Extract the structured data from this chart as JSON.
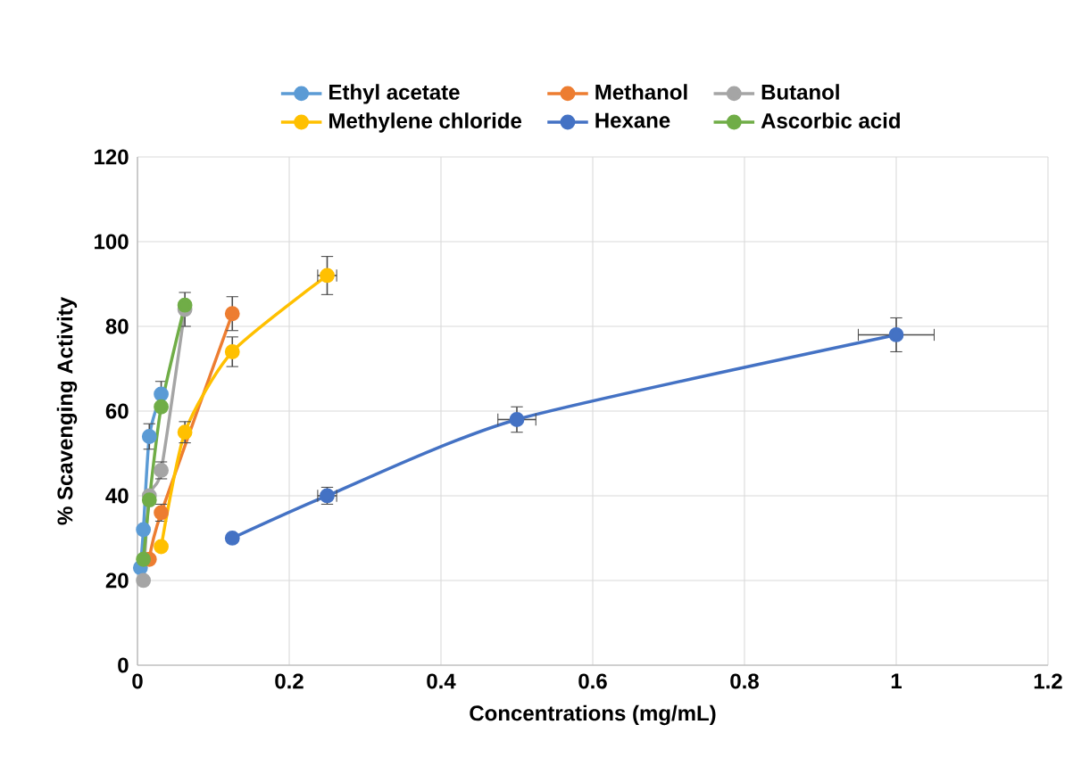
{
  "chart_data": {
    "type": "line",
    "xlabel": "Concentrations (mg/mL)",
    "ylabel": "% Scavenging Activity",
    "xlim": [
      0,
      1.2
    ],
    "xticks": [
      0,
      0.2,
      0.4,
      0.6,
      0.8,
      1,
      1.2
    ],
    "ylim": [
      0,
      120
    ],
    "yticks": [
      0,
      20,
      40,
      60,
      80,
      100,
      120
    ],
    "grid": true,
    "legend": "top",
    "marker": "circle",
    "series": [
      {
        "name": "Ethyl acetate",
        "color": "#5b9bd5",
        "x": [
          0.0039,
          0.0078,
          0.015625,
          0.03125
        ],
        "values": [
          23,
          32,
          54,
          64
        ],
        "errors": [
          null,
          null,
          3,
          3
        ]
      },
      {
        "name": "Methanol",
        "color": "#ed7d31",
        "x": [
          0.015625,
          0.03125,
          0.125
        ],
        "values": [
          25,
          36,
          83
        ],
        "errors": [
          null,
          2,
          4
        ]
      },
      {
        "name": "Butanol",
        "color": "#a5a5a5",
        "x": [
          0.0078,
          0.015625,
          0.03125,
          0.0625
        ],
        "values": [
          20,
          40,
          46,
          84
        ],
        "errors": [
          null,
          null,
          2,
          4
        ]
      },
      {
        "name": "Methylene chloride",
        "color": "#ffc000",
        "x": [
          0.03125,
          0.0625,
          0.125,
          0.25
        ],
        "values": [
          28,
          55,
          74,
          92
        ],
        "errors": [
          null,
          2.5,
          3.5,
          4.5
        ],
        "xerrors": [
          null,
          null,
          null,
          0.0125
        ]
      },
      {
        "name": "Hexane",
        "color": "#4472c4",
        "x": [
          0.125,
          0.25,
          0.5,
          1
        ],
        "values": [
          30,
          40,
          58,
          78
        ],
        "errors": [
          null,
          2,
          3,
          4
        ],
        "xerrors": [
          null,
          0.0125,
          0.025,
          0.05
        ]
      },
      {
        "name": "Ascorbic acid",
        "color": "#70ad47",
        "x": [
          0.0078,
          0.015625,
          0.03125,
          0.0625
        ],
        "values": [
          25,
          39,
          61,
          85
        ]
      }
    ]
  }
}
